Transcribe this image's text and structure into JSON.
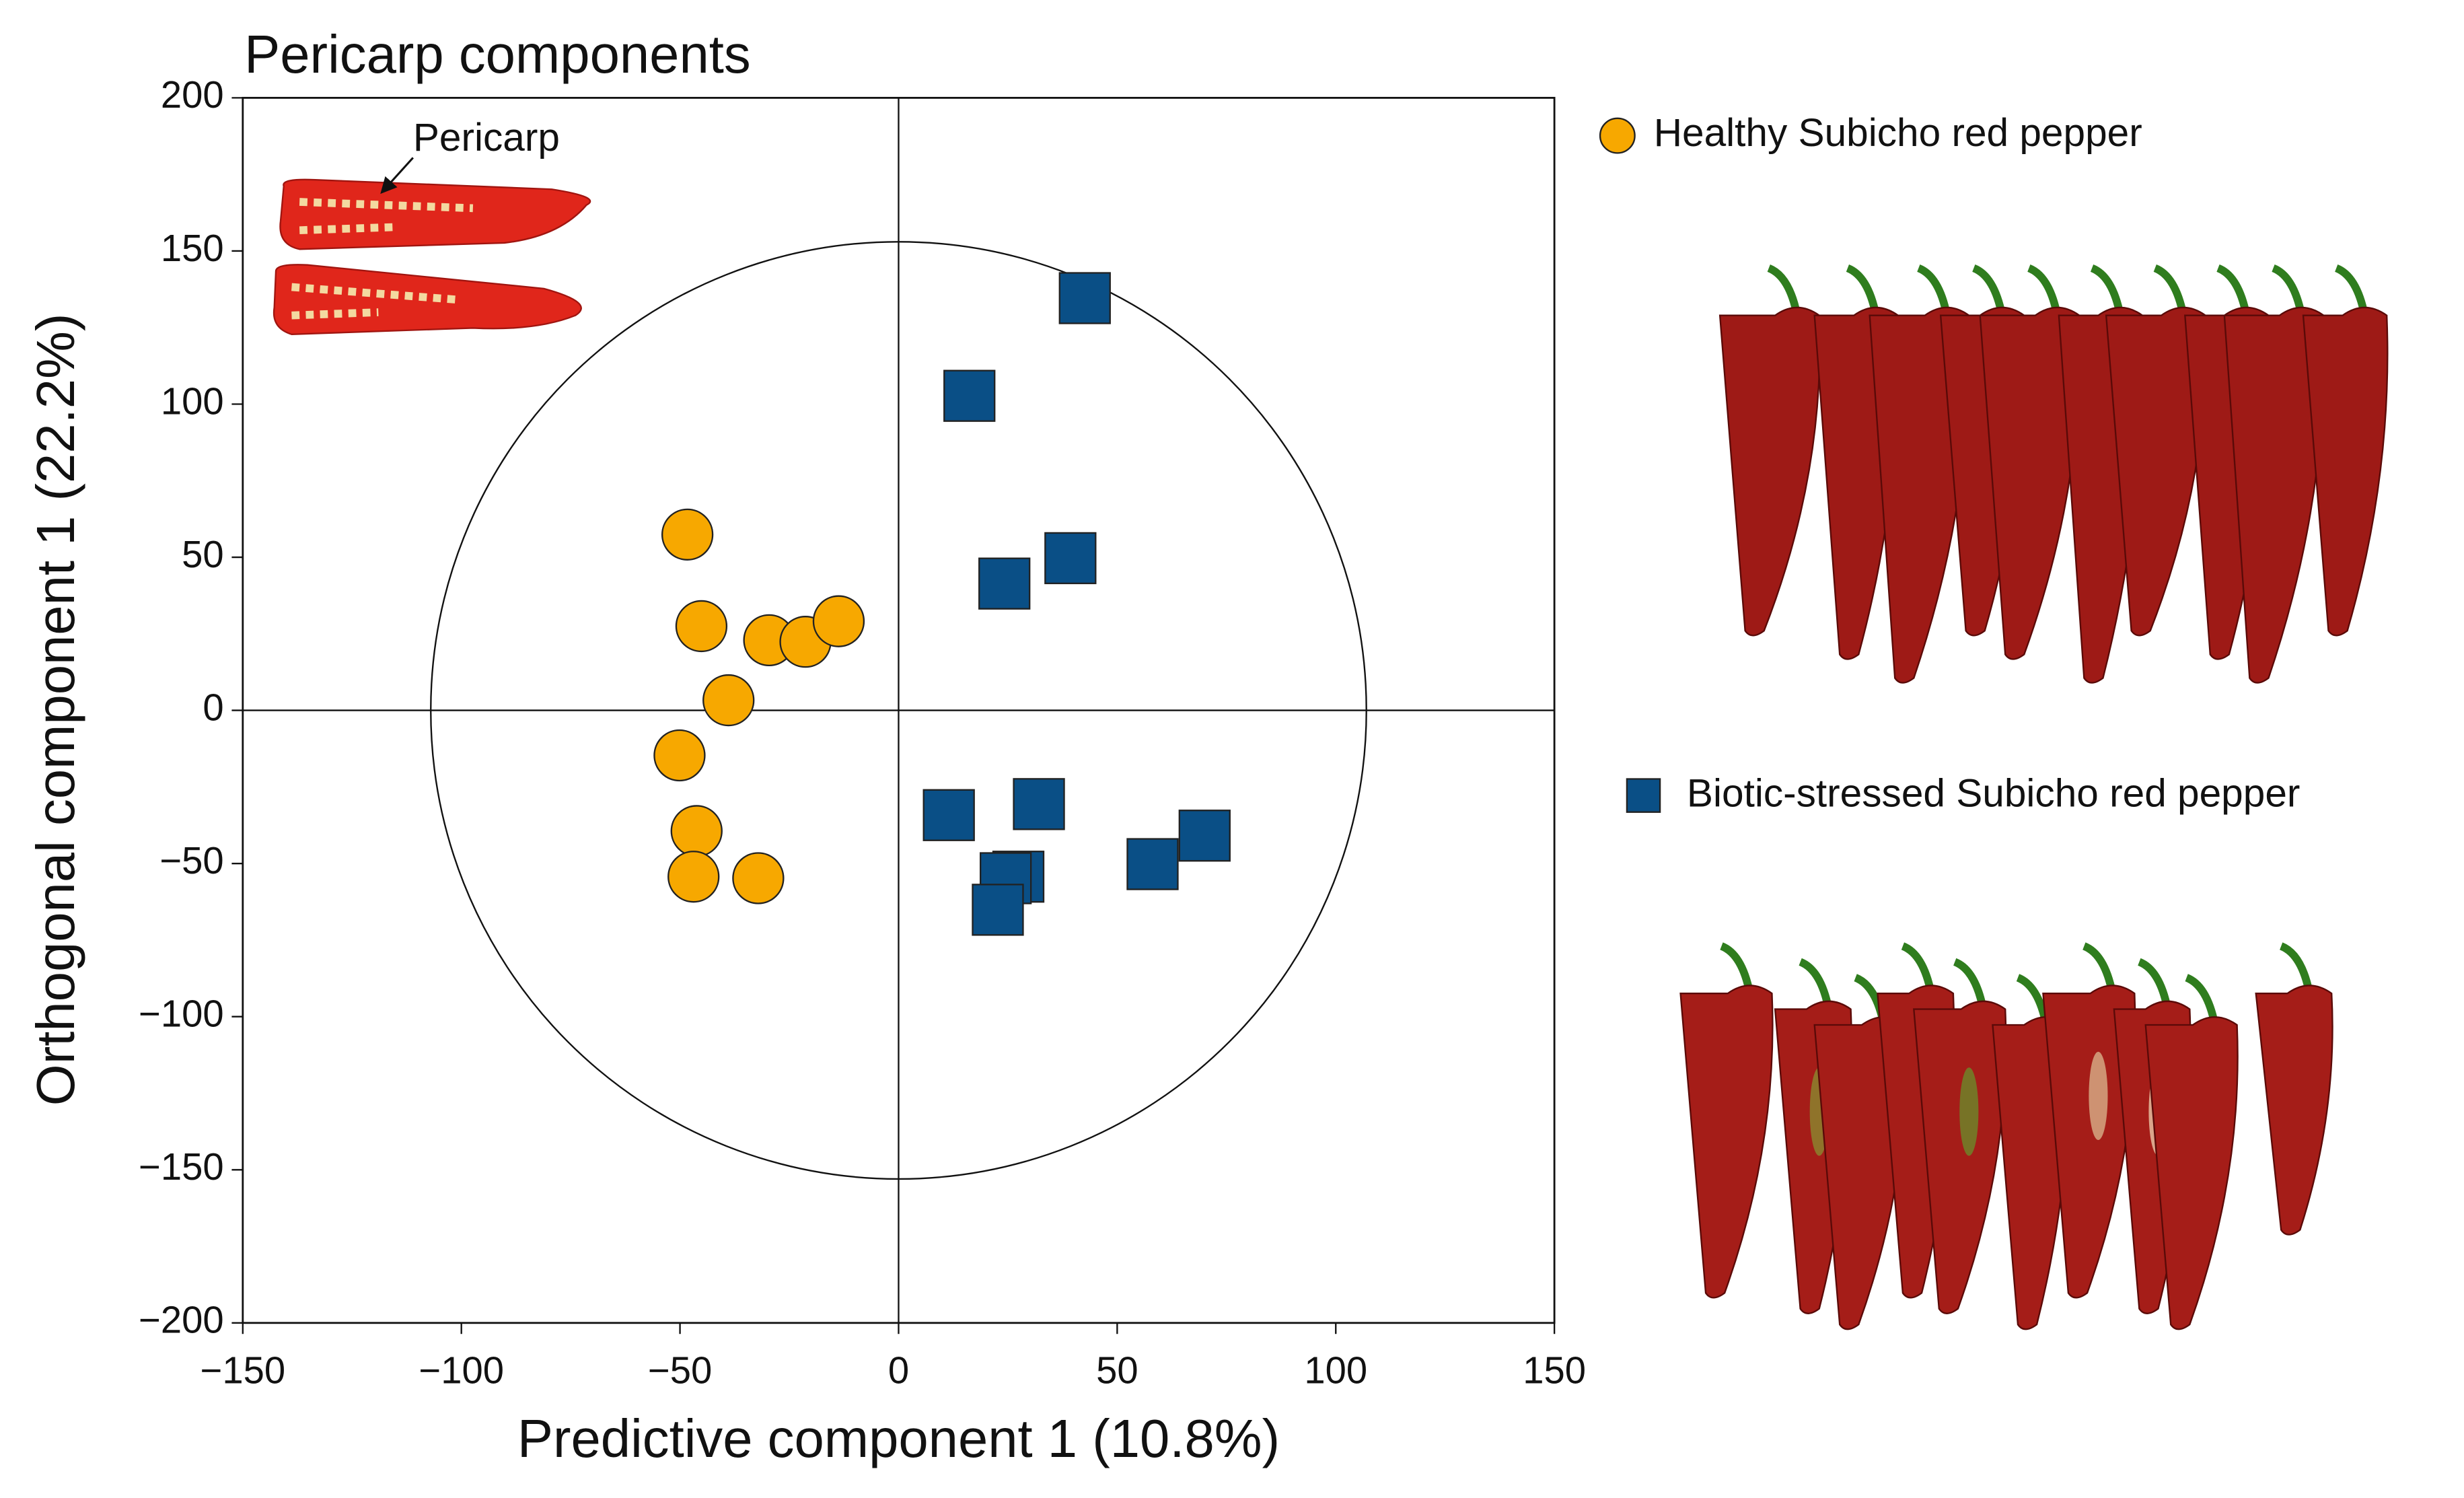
{
  "chart_data": {
    "type": "scatter",
    "title": "Pericarp components",
    "xlabel": "Predictive component 1 (10.8%)",
    "ylabel": "Orthogonal component 1 (22.2%)",
    "annotation": "Pericarp",
    "xlim": [
      -150,
      150
    ],
    "ylim": [
      -200,
      200
    ],
    "xticks": [
      {
        "value": -150,
        "label": "−150"
      },
      {
        "value": -100,
        "label": "−100"
      },
      {
        "value": -50,
        "label": "−50"
      },
      0,
      50,
      100,
      150
    ],
    "yticks": [
      {
        "value": -200,
        "label": "−200"
      },
      {
        "value": -150,
        "label": "−150"
      },
      {
        "value": -100,
        "label": "−100"
      },
      {
        "value": -50,
        "label": "−50"
      },
      0,
      50,
      100,
      150,
      200
    ],
    "ellipse": {
      "rx": 107,
      "ry": 153
    },
    "series": [
      {
        "name": "Healthy Subicho red pepper",
        "color": "#f7a800",
        "marker": "circle",
        "x": [
          -48.3,
          -45.1,
          -29.6,
          -21.3,
          -13.7,
          -38.9,
          -50.1,
          -46.2,
          -46.9,
          -32.1
        ],
        "values": [
          57.4,
          27.5,
          22.9,
          22.4,
          29.1,
          3.3,
          -14.7,
          -39.4,
          -54.3,
          -54.8
        ]
      },
      {
        "name": "Biotic-stressed Subicho red pepper",
        "color": "#0a4f86",
        "marker": "square",
        "x": [
          42.6,
          16.2,
          24.2,
          39.3,
          11.5,
          32.1,
          70.0,
          58.1,
          27.4,
          24.5,
          22.7
        ],
        "values": [
          134.6,
          102.7,
          41.4,
          49.7,
          -34.2,
          -30.6,
          -40.9,
          -50.2,
          -54.3,
          -54.8,
          -65.1
        ]
      }
    ]
  }
}
